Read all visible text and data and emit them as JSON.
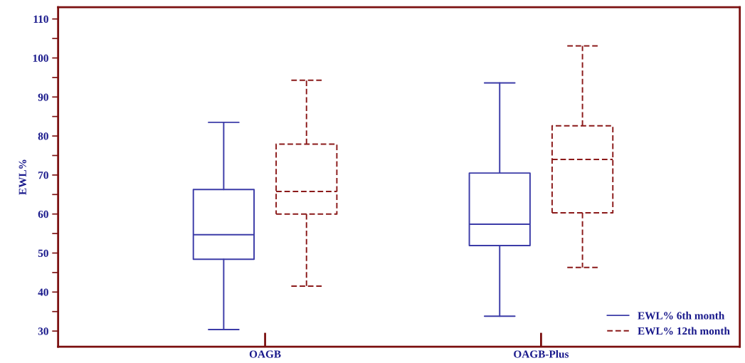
{
  "chart_data": {
    "type": "box",
    "ylabel": "EWL%",
    "categories": [
      "OAGB",
      "OAGB-Plus"
    ],
    "series": [
      {
        "name": "EWL% 6th month",
        "color": "#3c3ca8",
        "line_style": "solid",
        "boxes": [
          {
            "low": 30.4,
            "q1": 48.4,
            "median": 54.7,
            "q3": 66.3,
            "high": 83.5
          },
          {
            "low": 33.8,
            "q1": 51.9,
            "median": 57.4,
            "q3": 70.5,
            "high": 93.6
          }
        ]
      },
      {
        "name": "EWL% 12th month",
        "color": "#8b1a1a",
        "line_style": "dashed",
        "boxes": [
          {
            "low": 41.5,
            "q1": 60.0,
            "median": 65.8,
            "q3": 77.9,
            "high": 94.3
          },
          {
            "low": 46.3,
            "q1": 60.3,
            "median": 74.0,
            "q3": 82.6,
            "high": 103.1
          }
        ]
      }
    ],
    "ylim": [
      26,
      113
    ],
    "yticks": [
      30,
      {
        "value": 35,
        "label": null
      },
      40,
      {
        "value": 45,
        "label": null
      },
      50,
      {
        "value": 55,
        "label": null
      },
      60,
      {
        "value": 65,
        "label": null
      },
      70,
      {
        "value": 75,
        "label": null
      },
      80,
      {
        "value": 85,
        "label": null
      },
      90,
      {
        "value": 95,
        "label": null
      },
      100,
      {
        "value": 105,
        "label": null
      },
      110
    ],
    "grid": false,
    "legend": "bottom right"
  }
}
